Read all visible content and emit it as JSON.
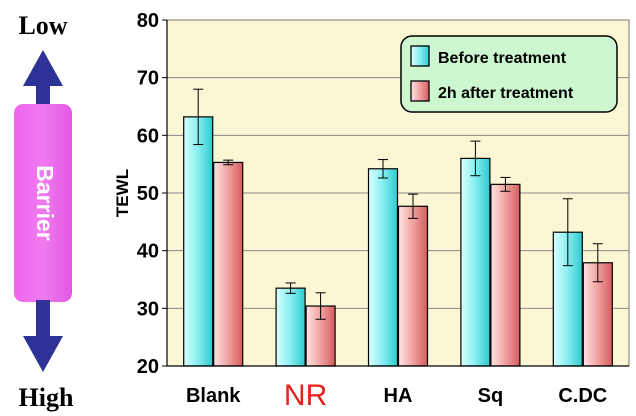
{
  "barrier_scale": {
    "top_label": "Low",
    "bottom_label": "High",
    "bar_label": "Barrier",
    "bar_color": "#ee66ee",
    "arrow_color": "#2e3196"
  },
  "chart_data": {
    "type": "bar",
    "title": "",
    "xlabel": "",
    "ylabel": "TEWL",
    "ylim": [
      20,
      80
    ],
    "yticks": [
      20,
      30,
      40,
      50,
      60,
      70,
      80
    ],
    "grid": true,
    "legend_position": "top-right",
    "categories": [
      "Blank",
      "NR",
      "HA",
      "Sq",
      "C.DC"
    ],
    "category_colors": [
      "#000000",
      "#e8201c",
      "#000000",
      "#000000",
      "#000000"
    ],
    "series": [
      {
        "name": "Before treatment",
        "color": "#8ff0f2",
        "values": [
          63.2,
          33.5,
          54.2,
          56.0,
          43.2
        ],
        "errors": [
          4.8,
          0.9,
          1.6,
          3.0,
          5.8
        ]
      },
      {
        "name": "2h after treatment",
        "color": "#f2a8a8",
        "values": [
          55.3,
          30.4,
          47.7,
          51.5,
          37.9
        ],
        "errors": [
          0.4,
          2.3,
          2.1,
          1.2,
          3.3
        ]
      }
    ],
    "plot_background": "#fbf6d3",
    "legend_background": "#cdf7cf"
  }
}
